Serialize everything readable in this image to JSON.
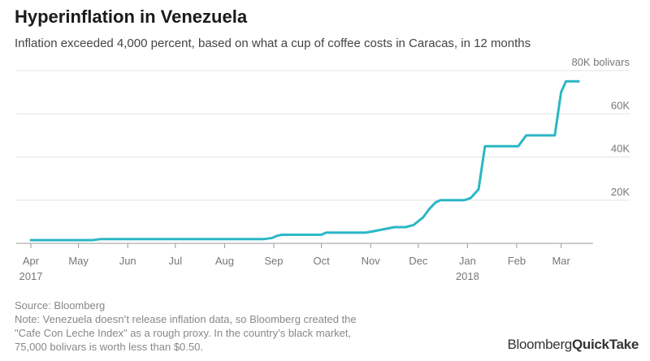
{
  "header": {
    "title": "Hyperinflation in Venezuela",
    "subtitle": "Inflation exceeded 4,000 percent, based on what a cup of coffee costs in Caracas, in 12 months"
  },
  "footer": {
    "source": "Source: Bloomberg",
    "note_lines": [
      "Note: Venezuela doesn’t release inflation data, so Bloomberg created the",
      "\"Cafe Con Leche Index\" as a rough proxy. In the country’s black market,",
      "75,000 bolivars is worth less than $0.50."
    ]
  },
  "brand": {
    "part1": "Bloomberg",
    "part2": "QuickTake"
  },
  "colors": {
    "line": "#2ab7c6",
    "grid": "#e3e3e3",
    "axis": "#999999",
    "tick_text": "#777777"
  },
  "chart_data": {
    "type": "line",
    "title": "Hyperinflation in Venezuela",
    "xlabel": "",
    "ylabel": "",
    "ylim": [
      0,
      80000
    ],
    "x_range": [
      "2017-04-01",
      "2018-03-15"
    ],
    "grid": true,
    "y_ticks": [
      {
        "value": 20000,
        "label": "20K"
      },
      {
        "value": 40000,
        "label": "40K"
      },
      {
        "value": 60000,
        "label": "60K"
      },
      {
        "value": 80000,
        "label": "80K bolivars"
      }
    ],
    "x_ticks": [
      {
        "date": "2017-04-01",
        "label": "Apr",
        "sub": "2017"
      },
      {
        "date": "2017-05-01",
        "label": "May",
        "sub": ""
      },
      {
        "date": "2017-06-01",
        "label": "Jun",
        "sub": ""
      },
      {
        "date": "2017-07-01",
        "label": "Jul",
        "sub": ""
      },
      {
        "date": "2017-08-01",
        "label": "Aug",
        "sub": ""
      },
      {
        "date": "2017-09-01",
        "label": "Sep",
        "sub": ""
      },
      {
        "date": "2017-10-01",
        "label": "Oct",
        "sub": ""
      },
      {
        "date": "2017-11-01",
        "label": "Nov",
        "sub": ""
      },
      {
        "date": "2017-12-01",
        "label": "Dec",
        "sub": ""
      },
      {
        "date": "2018-01-01",
        "label": "Jan",
        "sub": "2018"
      },
      {
        "date": "2018-02-01",
        "label": "Feb",
        "sub": ""
      },
      {
        "date": "2018-03-01",
        "label": "Mar",
        "sub": ""
      }
    ],
    "series": [
      {
        "x": [
          "2017-04-01",
          "2017-05-10",
          "2017-05-15",
          "2017-08-26",
          "2017-08-31",
          "2017-09-03",
          "2017-09-06",
          "2017-10-01",
          "2017-10-04",
          "2017-10-29",
          "2017-11-02",
          "2017-11-16",
          "2017-11-23",
          "2017-11-28",
          "2017-12-04",
          "2017-12-08",
          "2017-12-12",
          "2017-12-15",
          "2017-12-30",
          "2018-01-03",
          "2018-01-08",
          "2018-01-12",
          "2018-01-18",
          "2018-02-02",
          "2018-02-07",
          "2018-02-12",
          "2018-02-25",
          "2018-03-01",
          "2018-03-04",
          "2018-03-12"
        ],
        "y": [
          1500,
          1500,
          2000,
          2000,
          2500,
          3500,
          4000,
          4000,
          5000,
          5000,
          5500,
          7500,
          7500,
          8500,
          12000,
          16000,
          19000,
          20000,
          20000,
          21000,
          25000,
          45000,
          45000,
          45000,
          50000,
          50000,
          50000,
          70000,
          75000,
          75000
        ]
      }
    ]
  }
}
